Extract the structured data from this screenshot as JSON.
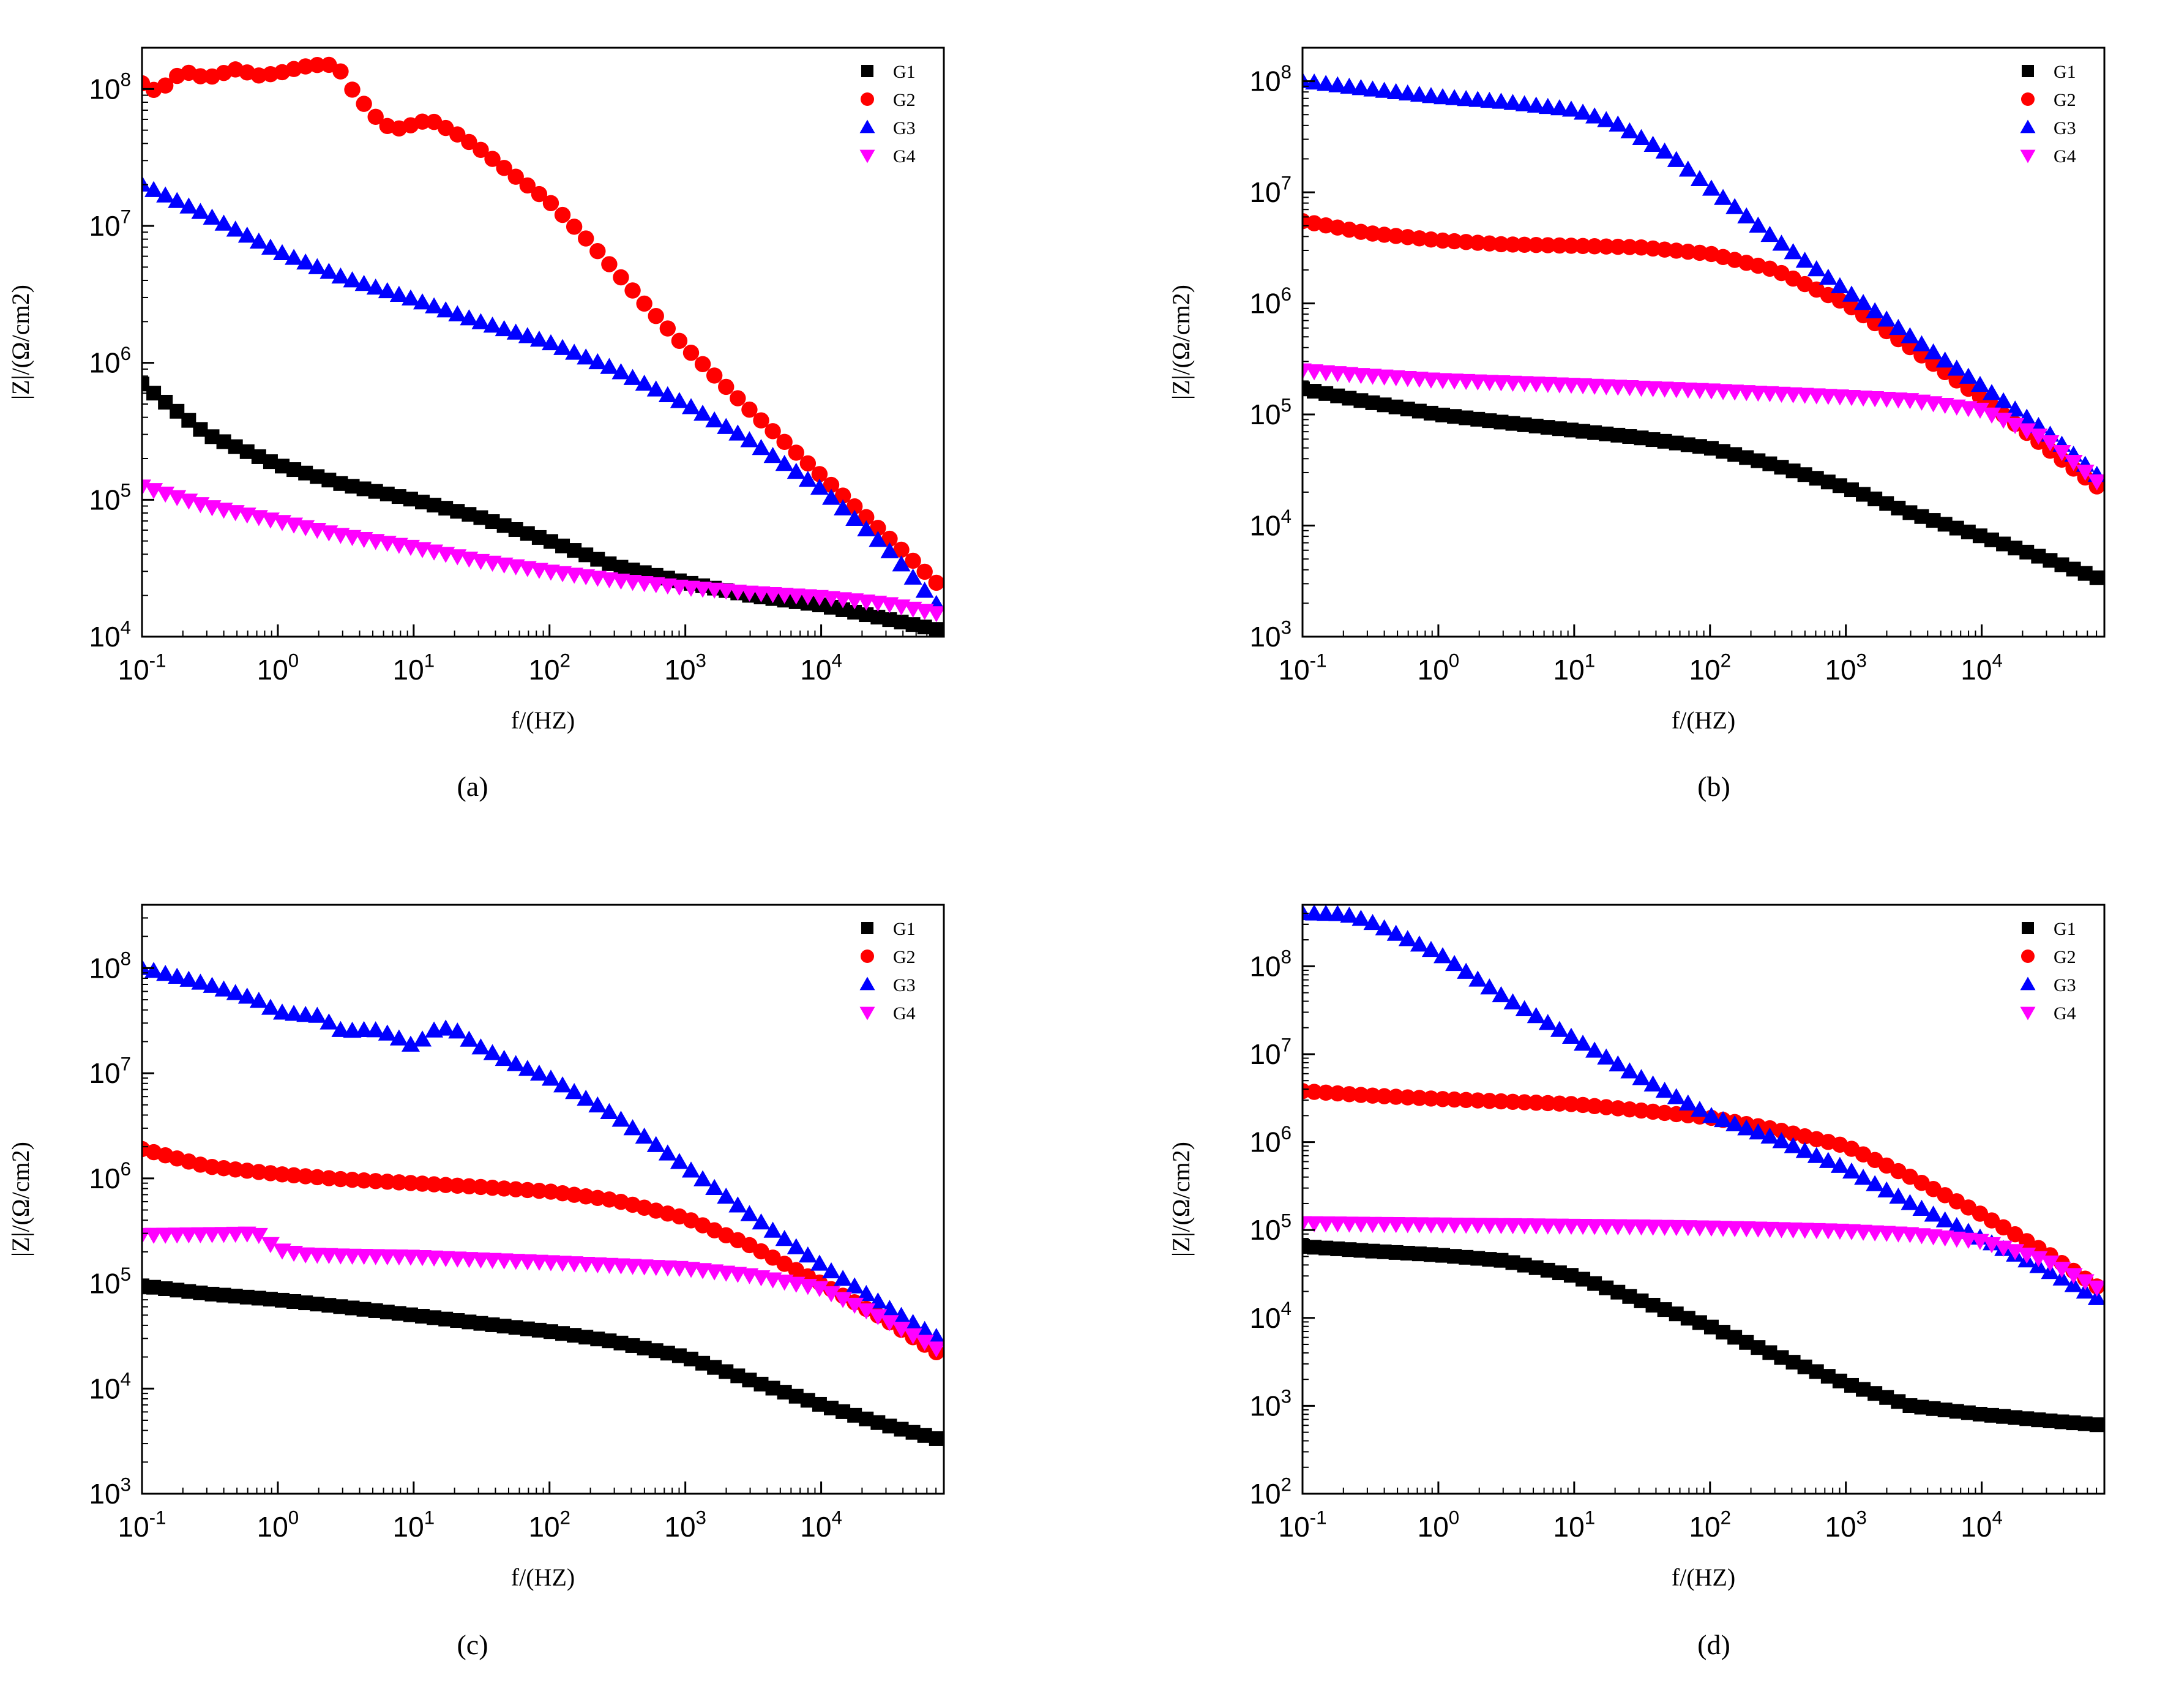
{
  "figure": {
    "panel_labels": [
      "(a)",
      "(b)",
      "(c)",
      "(d)"
    ]
  },
  "style": {
    "series_colors": {
      "G1": "#000000",
      "G2": "#ff0000",
      "G3": "#0000ff",
      "G4": "#ff00ff"
    },
    "series_markers": {
      "G1": "square",
      "G2": "circle",
      "G3": "triangle-up",
      "G4": "triangle-down"
    }
  },
  "chart_data": [
    {
      "panel": "(a)",
      "type": "scatter",
      "xscale": "log",
      "yscale": "log",
      "xlabel": "f/(HZ)",
      "ylabel": "|Z|/(Ω/cm2)",
      "xlim": [
        0.1,
        80000
      ],
      "ylim": [
        10000,
        200000000
      ],
      "xticks": [
        0.1,
        1,
        10,
        100,
        1000,
        10000
      ],
      "xtick_labels": [
        "10^-1",
        "10^0",
        "10^1",
        "10^2",
        "10^3",
        "10^4"
      ],
      "yticks": [
        10000,
        100000,
        1000000,
        10000000,
        100000000
      ],
      "ytick_labels": [
        "10^4",
        "10^5",
        "10^6",
        "10^7",
        "10^8"
      ],
      "legend": [
        "G1",
        "G2",
        "G3",
        "G4"
      ],
      "legend_position": "top-right",
      "series": [
        {
          "name": "G1",
          "x": [
            0.1,
            0.3,
            1,
            3,
            10,
            30,
            100,
            300,
            1000,
            3000,
            10000,
            30000,
            80000
          ],
          "y": [
            700000,
            300000,
            180000,
            130000,
            100000,
            75000,
            50000,
            33000,
            25000,
            20000,
            17000,
            13500,
            11000
          ]
        },
        {
          "name": "G2",
          "x": [
            0.1,
            0.13,
            0.2,
            0.3,
            0.5,
            0.7,
            1,
            1.5,
            2,
            2.7,
            3.5,
            5,
            7,
            10,
            13,
            20,
            30,
            50,
            100,
            200,
            500,
            1000,
            3000,
            10000,
            30000,
            80000
          ],
          "y": [
            110000000,
            95000000,
            135000000,
            120000000,
            140000000,
            125000000,
            130000000,
            145000000,
            150000000,
            150000000,
            100000000,
            65000000,
            50000000,
            55000000,
            60000000,
            48000000,
            37000000,
            25000000,
            15000000,
            7500000,
            2700000,
            1300000,
            450000,
            150000,
            55000,
            22000
          ]
        },
        {
          "name": "G3",
          "x": [
            0.1,
            0.3,
            1,
            3,
            10,
            30,
            100,
            300,
            1000,
            3000,
            10000,
            30000,
            80000
          ],
          "y": [
            20000000,
            12000000,
            6500000,
            4200000,
            2900000,
            2000000,
            1400000,
            900000,
            500000,
            270000,
            120000,
            45000,
            15000
          ]
        },
        {
          "name": "G4",
          "x": [
            0.1,
            0.3,
            1,
            3,
            10,
            30,
            100,
            300,
            1000,
            3000,
            10000,
            30000,
            80000
          ],
          "y": [
            125000,
            90000,
            70000,
            55000,
            45000,
            36000,
            30000,
            26000,
            23000,
            21000,
            19500,
            17500,
            14500
          ]
        }
      ]
    },
    {
      "panel": "(b)",
      "type": "scatter",
      "xscale": "log",
      "yscale": "log",
      "xlabel": "f/(HZ)",
      "ylabel": "|Z|/(Ω/cm2)",
      "xlim": [
        0.1,
        80000
      ],
      "ylim": [
        1000,
        200000000
      ],
      "xticks": [
        0.1,
        1,
        10,
        100,
        1000,
        10000
      ],
      "xtick_labels": [
        "10^-1",
        "10^0",
        "10^1",
        "10^2",
        "10^3",
        "10^4"
      ],
      "yticks": [
        1000,
        10000,
        100000,
        1000000,
        10000000,
        100000000
      ],
      "ytick_labels": [
        "10^3",
        "10^4",
        "10^5",
        "10^6",
        "10^7",
        "10^8"
      ],
      "legend": [
        "G1",
        "G2",
        "G3",
        "G4"
      ],
      "legend_position": "top-right",
      "series": [
        {
          "name": "G1",
          "x": [
            0.1,
            0.3,
            1,
            3,
            10,
            30,
            100,
            300,
            1000,
            3000,
            10000,
            30000,
            80000
          ],
          "y": [
            170000,
            130000,
            100000,
            85000,
            72000,
            62000,
            50000,
            35000,
            22000,
            13000,
            8000,
            5000,
            3200
          ]
        },
        {
          "name": "G2",
          "x": [
            0.1,
            0.3,
            1,
            3,
            10,
            30,
            100,
            300,
            1000,
            3000,
            10000,
            30000,
            80000
          ],
          "y": [
            5500000,
            4300000,
            3700000,
            3400000,
            3300000,
            3200000,
            2800000,
            2000000,
            1000000,
            400000,
            140000,
            50000,
            20000
          ]
        },
        {
          "name": "G3",
          "x": [
            0.1,
            0.3,
            1,
            3,
            10,
            20,
            50,
            100,
            300,
            1000,
            3000,
            10000,
            30000,
            80000
          ],
          "y": [
            100000000,
            85000000,
            72000000,
            65000000,
            55000000,
            42000000,
            22000000,
            11000000,
            3800000,
            1300000,
            500000,
            180000,
            70000,
            25000
          ]
        },
        {
          "name": "G4",
          "x": [
            0.1,
            0.3,
            1,
            3,
            10,
            30,
            100,
            300,
            1000,
            3000,
            10000,
            30000,
            80000
          ],
          "y": [
            250000,
            225000,
            205000,
            195000,
            185000,
            175000,
            165000,
            155000,
            145000,
            135000,
            110000,
            60000,
            22000
          ]
        }
      ]
    },
    {
      "panel": "(c)",
      "type": "scatter",
      "xscale": "log",
      "yscale": "log",
      "xlabel": "f/(HZ)",
      "ylabel": "|Z|/(Ω/cm2)",
      "xlim": [
        0.1,
        80000
      ],
      "ylim": [
        1000,
        400000000
      ],
      "xticks": [
        0.1,
        1,
        10,
        100,
        1000,
        10000
      ],
      "xtick_labels": [
        "10^-1",
        "10^0",
        "10^1",
        "10^2",
        "10^3",
        "10^4"
      ],
      "yticks": [
        1000,
        10000,
        100000,
        1000000,
        10000000,
        100000000
      ],
      "ytick_labels": [
        "10^3",
        "10^4",
        "10^5",
        "10^6",
        "10^7",
        "10^8"
      ],
      "legend": [
        "G1",
        "G2",
        "G3",
        "G4"
      ],
      "legend_position": "top-right",
      "series": [
        {
          "name": "G1",
          "x": [
            0.1,
            0.3,
            1,
            3,
            10,
            30,
            100,
            300,
            1000,
            3000,
            10000,
            30000,
            80000
          ],
          "y": [
            95000,
            80000,
            70000,
            60000,
            50000,
            42000,
            35000,
            28000,
            20000,
            12000,
            7000,
            4500,
            3200
          ]
        },
        {
          "name": "G2",
          "x": [
            0.1,
            0.3,
            1,
            3,
            10,
            30,
            100,
            300,
            1000,
            3000,
            10000,
            30000,
            80000
          ],
          "y": [
            1900000,
            1300000,
            1100000,
            980000,
            900000,
            830000,
            750000,
            620000,
            420000,
            230000,
            100000,
            45000,
            20000
          ]
        },
        {
          "name": "G3",
          "x": [
            0.1,
            0.3,
            0.7,
            1,
            1.5,
            2,
            3,
            5,
            7,
            10,
            15,
            20,
            30,
            50,
            100,
            300,
            1000,
            3000,
            10000,
            30000,
            80000
          ],
          "y": [
            100000000,
            70000000,
            50000000,
            38000000,
            36000000,
            35000000,
            25000000,
            26000000,
            23000000,
            18000000,
            27000000,
            26000000,
            18000000,
            13000000,
            9000000,
            4000000,
            1300000,
            450000,
            150000,
            60000,
            28000
          ]
        },
        {
          "name": "G4",
          "x": [
            0.1,
            0.3,
            0.7,
            1,
            1.5,
            3,
            10,
            30,
            100,
            300,
            1000,
            3000,
            10000,
            30000,
            80000
          ],
          "y": [
            290000,
            295000,
            300000,
            210000,
            190000,
            185000,
            180000,
            170000,
            160000,
            150000,
            140000,
            120000,
            90000,
            45000,
            22000
          ]
        }
      ]
    },
    {
      "panel": "(d)",
      "type": "scatter",
      "xscale": "log",
      "yscale": "log",
      "xlabel": "f/(HZ)",
      "ylabel": "|Z|/(Ω/cm2)",
      "xlim": [
        0.1,
        80000
      ],
      "ylim": [
        100,
        500000000
      ],
      "xticks": [
        0.1,
        1,
        10,
        100,
        1000,
        10000
      ],
      "xtick_labels": [
        "10^-1",
        "10^0",
        "10^1",
        "10^2",
        "10^3",
        "10^4"
      ],
      "yticks": [
        100,
        1000,
        10000,
        100000,
        1000000,
        10000000,
        100000000
      ],
      "ytick_labels": [
        "10^2",
        "10^3",
        "10^4",
        "10^5",
        "10^6",
        "10^7",
        "10^8"
      ],
      "legend": [
        "G1",
        "G2",
        "G3",
        "G4"
      ],
      "legend_position": "top-right",
      "series": [
        {
          "name": "G1",
          "x": [
            0.1,
            0.3,
            1,
            3,
            10,
            30,
            100,
            300,
            1000,
            3000,
            10000,
            30000,
            80000
          ],
          "y": [
            65000,
            58000,
            52000,
            45000,
            30000,
            16000,
            8000,
            3800,
            1800,
            1000,
            800,
            680,
            600
          ]
        },
        {
          "name": "G2",
          "x": [
            0.1,
            0.3,
            1,
            3,
            10,
            30,
            100,
            300,
            1000,
            3000,
            10000,
            30000,
            80000
          ],
          "y": [
            3800000,
            3400000,
            3100000,
            2900000,
            2700000,
            2300000,
            1900000,
            1400000,
            900000,
            400000,
            150000,
            55000,
            20000
          ]
        },
        {
          "name": "G3",
          "x": [
            0.1,
            0.2,
            0.3,
            1,
            3,
            10,
            30,
            100,
            300,
            1000,
            3000,
            10000,
            30000,
            80000
          ],
          "y": [
            400000000,
            390000000,
            330000000,
            140000000,
            45000000,
            15000000,
            5500000,
            2000000,
            1100000,
            500000,
            200000,
            80000,
            35000,
            15000
          ]
        },
        {
          "name": "G4",
          "x": [
            0.1,
            0.3,
            1,
            3,
            10,
            30,
            100,
            300,
            1000,
            3000,
            10000,
            30000,
            80000
          ],
          "y": [
            120000,
            118000,
            116000,
            114000,
            112000,
            110000,
            107000,
            103000,
            98000,
            90000,
            75000,
            45000,
            20000
          ]
        }
      ]
    }
  ]
}
